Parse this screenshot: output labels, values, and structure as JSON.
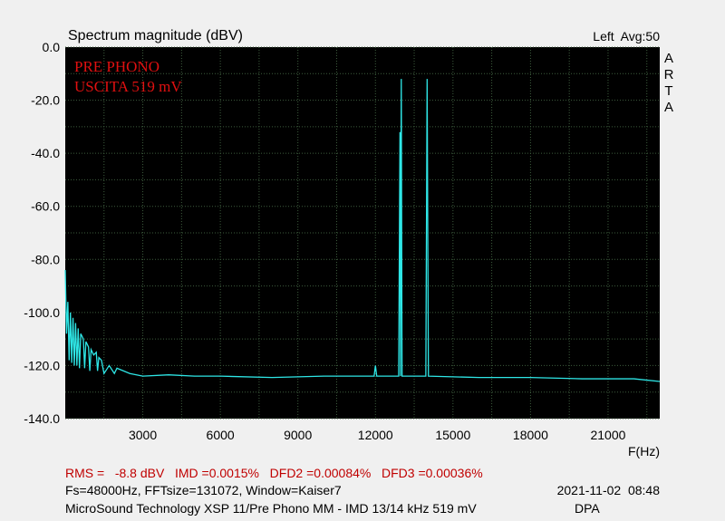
{
  "chart_data": {
    "type": "line",
    "title": "Spectrum magnitude (dBV)",
    "status": "Left  Avg:50",
    "brand": "ARTA",
    "annotations": [
      "PRE PHONO",
      "USCITA 519 mV"
    ],
    "x_label": "F(Hz)",
    "x": [
      0,
      50,
      100,
      150,
      200,
      250,
      300,
      350,
      400,
      450,
      500,
      550,
      600,
      700,
      750,
      800,
      900,
      950,
      1000,
      1100,
      1200,
      1250,
      1300,
      1400,
      1500,
      1700,
      1900,
      2000,
      2500,
      3000,
      4000,
      5000,
      6000,
      8000,
      10000,
      11950,
      12000,
      12050,
      12900,
      12950,
      12970,
      13000,
      13030,
      13950,
      14000,
      14050,
      16000,
      18000,
      20000,
      22000,
      23000
    ],
    "series": [
      {
        "color": "#2ee6e6",
        "values": [
          -84,
          -108,
          -96,
          -118,
          -100,
          -119,
          -102,
          -120,
          -104,
          -120,
          -106,
          -121,
          -108,
          -110,
          -121,
          -111,
          -113,
          -122,
          -114,
          -116,
          -115,
          -122,
          -117,
          -118,
          -123,
          -120,
          -123,
          -121,
          -123,
          -124,
          -123.5,
          -124,
          -124,
          -124.5,
          -124,
          -124,
          -120,
          -124,
          -124,
          -32,
          -124,
          -12,
          -124,
          -124,
          -12,
          -124,
          -124.5,
          -124.5,
          -125,
          -125,
          -126
        ]
      }
    ],
    "xlim": [
      0,
      23000
    ],
    "ylim": [
      -140,
      0
    ],
    "xticks": [
      3000,
      6000,
      9000,
      12000,
      15000,
      18000,
      21000
    ],
    "xminorticks": [
      1500,
      4500,
      7500,
      10500,
      13500,
      16500,
      19500,
      22500
    ],
    "yticks": [
      {
        "value": 0,
        "label": "0.0"
      },
      {
        "value": -20,
        "label": "-20.0"
      },
      {
        "value": -40,
        "label": "-40.0"
      },
      {
        "value": -60,
        "label": "-60.0"
      },
      {
        "value": -80,
        "label": "-80.0"
      },
      {
        "value": -100,
        "label": "-100.0"
      },
      {
        "value": -120,
        "label": "-120.0"
      },
      {
        "value": -140,
        "label": "-140.0"
      }
    ],
    "yminorticks": [
      -10,
      -30,
      -50,
      -70,
      -90,
      -110,
      -130
    ],
    "grid": true,
    "footer": {
      "measurements": "RMS =   -8.8 dBV   IMD =0.0015%   DFD2 =0.00084%   DFD3 =0.00036%",
      "settings": "Fs=48000Hz, FFTsize=131072, Window=Kaiser7",
      "datetime": "2021-11-02  08:48",
      "description": "MicroSound Technology XSP 11/Pre Phono MM - IMD 13/14 kHz 519 mV",
      "author": "DPA"
    }
  }
}
